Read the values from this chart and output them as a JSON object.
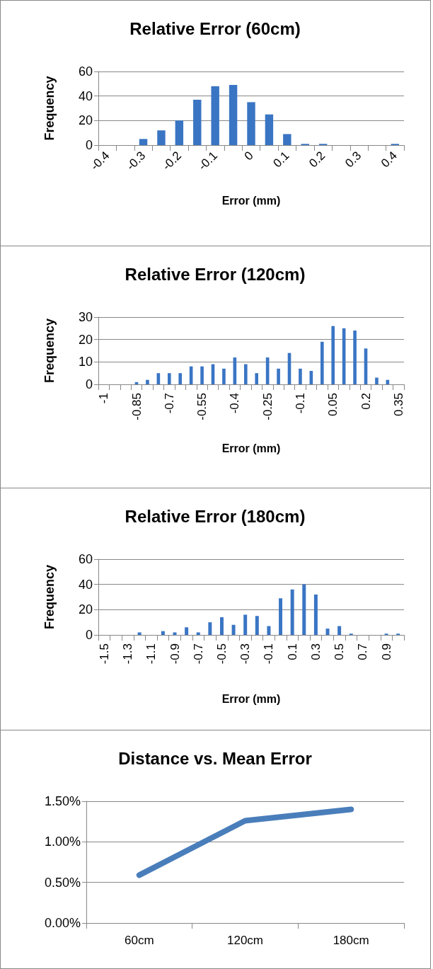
{
  "chart_data": [
    {
      "type": "bar",
      "title": "Relative Error (60cm)",
      "xlabel": "Error (mm)",
      "ylabel": "Frequency",
      "categories": [
        "-0.4",
        null,
        "-0.3",
        null,
        "-0.2",
        null,
        "-0.1",
        null,
        "0",
        null,
        "0.1",
        null,
        "0.2",
        null,
        "0.3",
        null,
        "0.4"
      ],
      "values": [
        0,
        0,
        5,
        12,
        20,
        37,
        48,
        49,
        35,
        25,
        9,
        1,
        1,
        0,
        0,
        0,
        1
      ],
      "color": "#3a75c4",
      "ylim": [
        0,
        60
      ],
      "yticks": [
        0,
        20,
        40,
        60
      ],
      "grid": "y"
    },
    {
      "type": "bar",
      "title": "Relative Error (120cm)",
      "xlabel": "Error (mm)",
      "ylabel": "Frequency",
      "categories": [
        "-1",
        null,
        null,
        "-0.85",
        null,
        null,
        "-0.7",
        null,
        null,
        "-0.55",
        null,
        null,
        "-0.4",
        null,
        null,
        "-0.25",
        null,
        null,
        "-0.1",
        null,
        null,
        "0.05",
        null,
        null,
        "0.2",
        null,
        null,
        "0.35"
      ],
      "values": [
        0,
        0,
        0,
        1,
        2,
        5,
        5,
        5,
        8,
        8,
        9,
        7,
        12,
        9,
        5,
        12,
        7,
        14,
        7,
        6,
        19,
        26,
        25,
        24,
        16,
        3,
        2,
        0
      ],
      "color": "#3a75c4",
      "ylim": [
        0,
        30
      ],
      "yticks": [
        0,
        10,
        20,
        30
      ],
      "grid": "y"
    },
    {
      "type": "bar",
      "title": "Relative Error (180cm)",
      "xlabel": "Error (mm)",
      "ylabel": "Frequency",
      "categories": [
        "-1.5",
        null,
        "-1.3",
        null,
        "-1.1",
        null,
        "-0.9",
        null,
        "-0.7",
        null,
        "-0.5",
        null,
        "-0.3",
        null,
        "-0.1",
        null,
        "0.1",
        null,
        "0.3",
        null,
        "0.5",
        null,
        "0.7",
        null,
        "0.9",
        null
      ],
      "values": [
        0,
        0,
        0,
        2,
        0,
        3,
        2,
        6,
        2,
        10,
        14,
        8,
        16,
        15,
        7,
        29,
        36,
        40,
        32,
        5,
        7,
        1,
        0,
        0,
        1,
        1
      ],
      "color": "#3a75c4",
      "ylim": [
        0,
        60
      ],
      "yticks": [
        0,
        20,
        40,
        60
      ],
      "grid": "y"
    },
    {
      "type": "line",
      "title": "Distance vs. Mean Error",
      "categories": [
        "60cm",
        "120cm",
        "180cm"
      ],
      "values": [
        0.59,
        1.26,
        1.4
      ],
      "color": "#4a7ebb",
      "ylim": [
        0,
        1.5
      ],
      "yticks": [
        {
          "value": 0,
          "label": "0.00%"
        },
        {
          "value": 0.5,
          "label": "0.50%"
        },
        {
          "value": 1,
          "label": "1.00%"
        },
        {
          "value": 1.5,
          "label": "1.50%"
        }
      ],
      "grid": "y",
      "marker": "none",
      "line_style": "solid"
    }
  ]
}
